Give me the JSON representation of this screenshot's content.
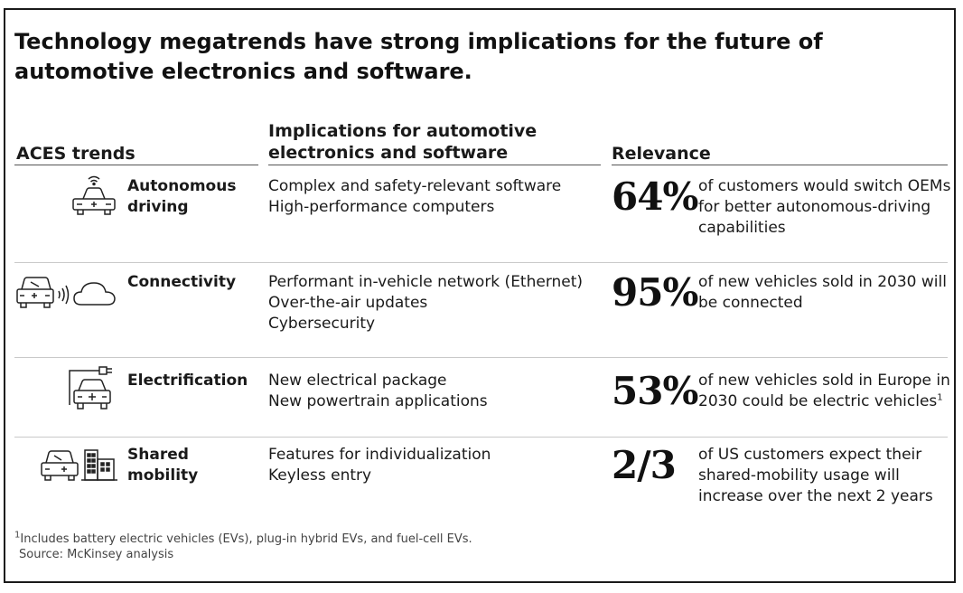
{
  "title": "Technology megatrends have strong implications for the future of automotive electronics and software.",
  "headers": {
    "trends": "ACES trends",
    "implications_line1": "Implications for automotive",
    "implications_line2": "electronics and software",
    "relevance": "Relevance"
  },
  "rows": [
    {
      "trend_line1": "Autonomous",
      "trend_line2": "driving",
      "icon": "autonomous-car-icon",
      "implications": [
        "Complex and safety-relevant software",
        "High-performance computers"
      ],
      "stat": "64%",
      "relevance": "of customers would switch OEMs for better autonomous-driving capabilities"
    },
    {
      "trend_line1": "Connectivity",
      "trend_line2": "",
      "icon": "connected-car-cloud-icon",
      "implications": [
        "Performant in-vehicle network (Ethernet)",
        "Over-the-air updates",
        "Cybersecurity"
      ],
      "stat": "95%",
      "relevance": "of new vehicles sold in 2030 will be connected"
    },
    {
      "trend_line1": "Electrification",
      "trend_line2": "",
      "icon": "electric-car-plug-icon",
      "implications": [
        "New electrical package",
        "New powertrain applications"
      ],
      "stat": "53%",
      "relevance": "of new vehicles sold in Europe in 2030 could be electric vehicles",
      "relevance_note": "1"
    },
    {
      "trend_line1": "Shared",
      "trend_line2": "mobility",
      "icon": "shared-car-buildings-icon",
      "implications": [
        "Features for individualization",
        "Keyless entry"
      ],
      "stat": "2/3",
      "relevance": "of US customers expect their shared-mobility usage will increase over the next 2 years"
    }
  ],
  "footnote": {
    "marker": "1",
    "text": "Includes battery electric vehicles (EVs), plug-in hybrid EVs, and fuel-cell EVs.",
    "source": "Source: McKinsey analysis"
  }
}
